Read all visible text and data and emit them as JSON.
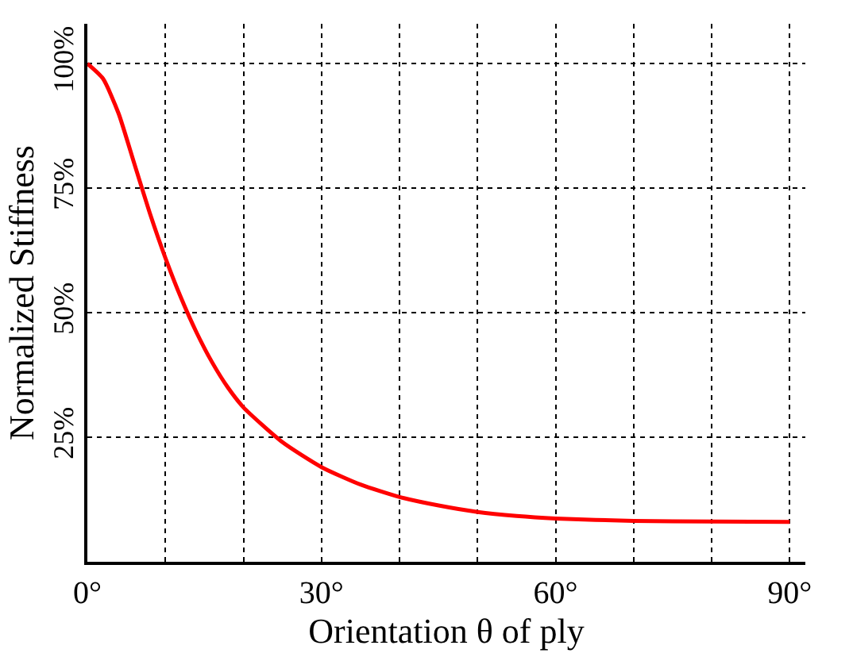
{
  "chart_data": {
    "type": "line",
    "xlabel": "Orientation θ of ply",
    "ylabel": "Normalized Stiffness",
    "x": [
      0,
      2,
      4,
      6,
      8,
      10,
      12,
      14,
      16,
      18,
      20,
      25,
      30,
      35,
      40,
      45,
      50,
      55,
      60,
      70,
      80,
      90
    ],
    "series": [
      {
        "color": "#ff0000",
        "values": [
          100,
          97,
          90,
          80,
          70,
          61,
          53,
          46,
          40,
          35,
          31,
          24,
          19,
          15.5,
          13,
          11.3,
          10,
          9.2,
          8.7,
          8.2,
          8.1,
          8
        ]
      }
    ],
    "xlim": [
      0,
      92
    ],
    "ylim": [
      0,
      108
    ],
    "xticks": [
      {
        "value": 0,
        "label": "0°"
      },
      {
        "value": 10,
        "label": null
      },
      {
        "value": 20,
        "label": null
      },
      {
        "value": 30,
        "label": "30°"
      },
      {
        "value": 40,
        "label": null
      },
      {
        "value": 50,
        "label": null
      },
      {
        "value": 60,
        "label": "60°"
      },
      {
        "value": 70,
        "label": null
      },
      {
        "value": 80,
        "label": null
      },
      {
        "value": 90,
        "label": "90°"
      }
    ],
    "yticks": [
      {
        "value": 25,
        "label": "25%"
      },
      {
        "value": 50,
        "label": "50%"
      },
      {
        "value": 75,
        "label": "75%"
      },
      {
        "value": 100,
        "label": "100%"
      }
    ],
    "grid": true,
    "legend": false,
    "marker": "none",
    "line_style": "solid"
  }
}
